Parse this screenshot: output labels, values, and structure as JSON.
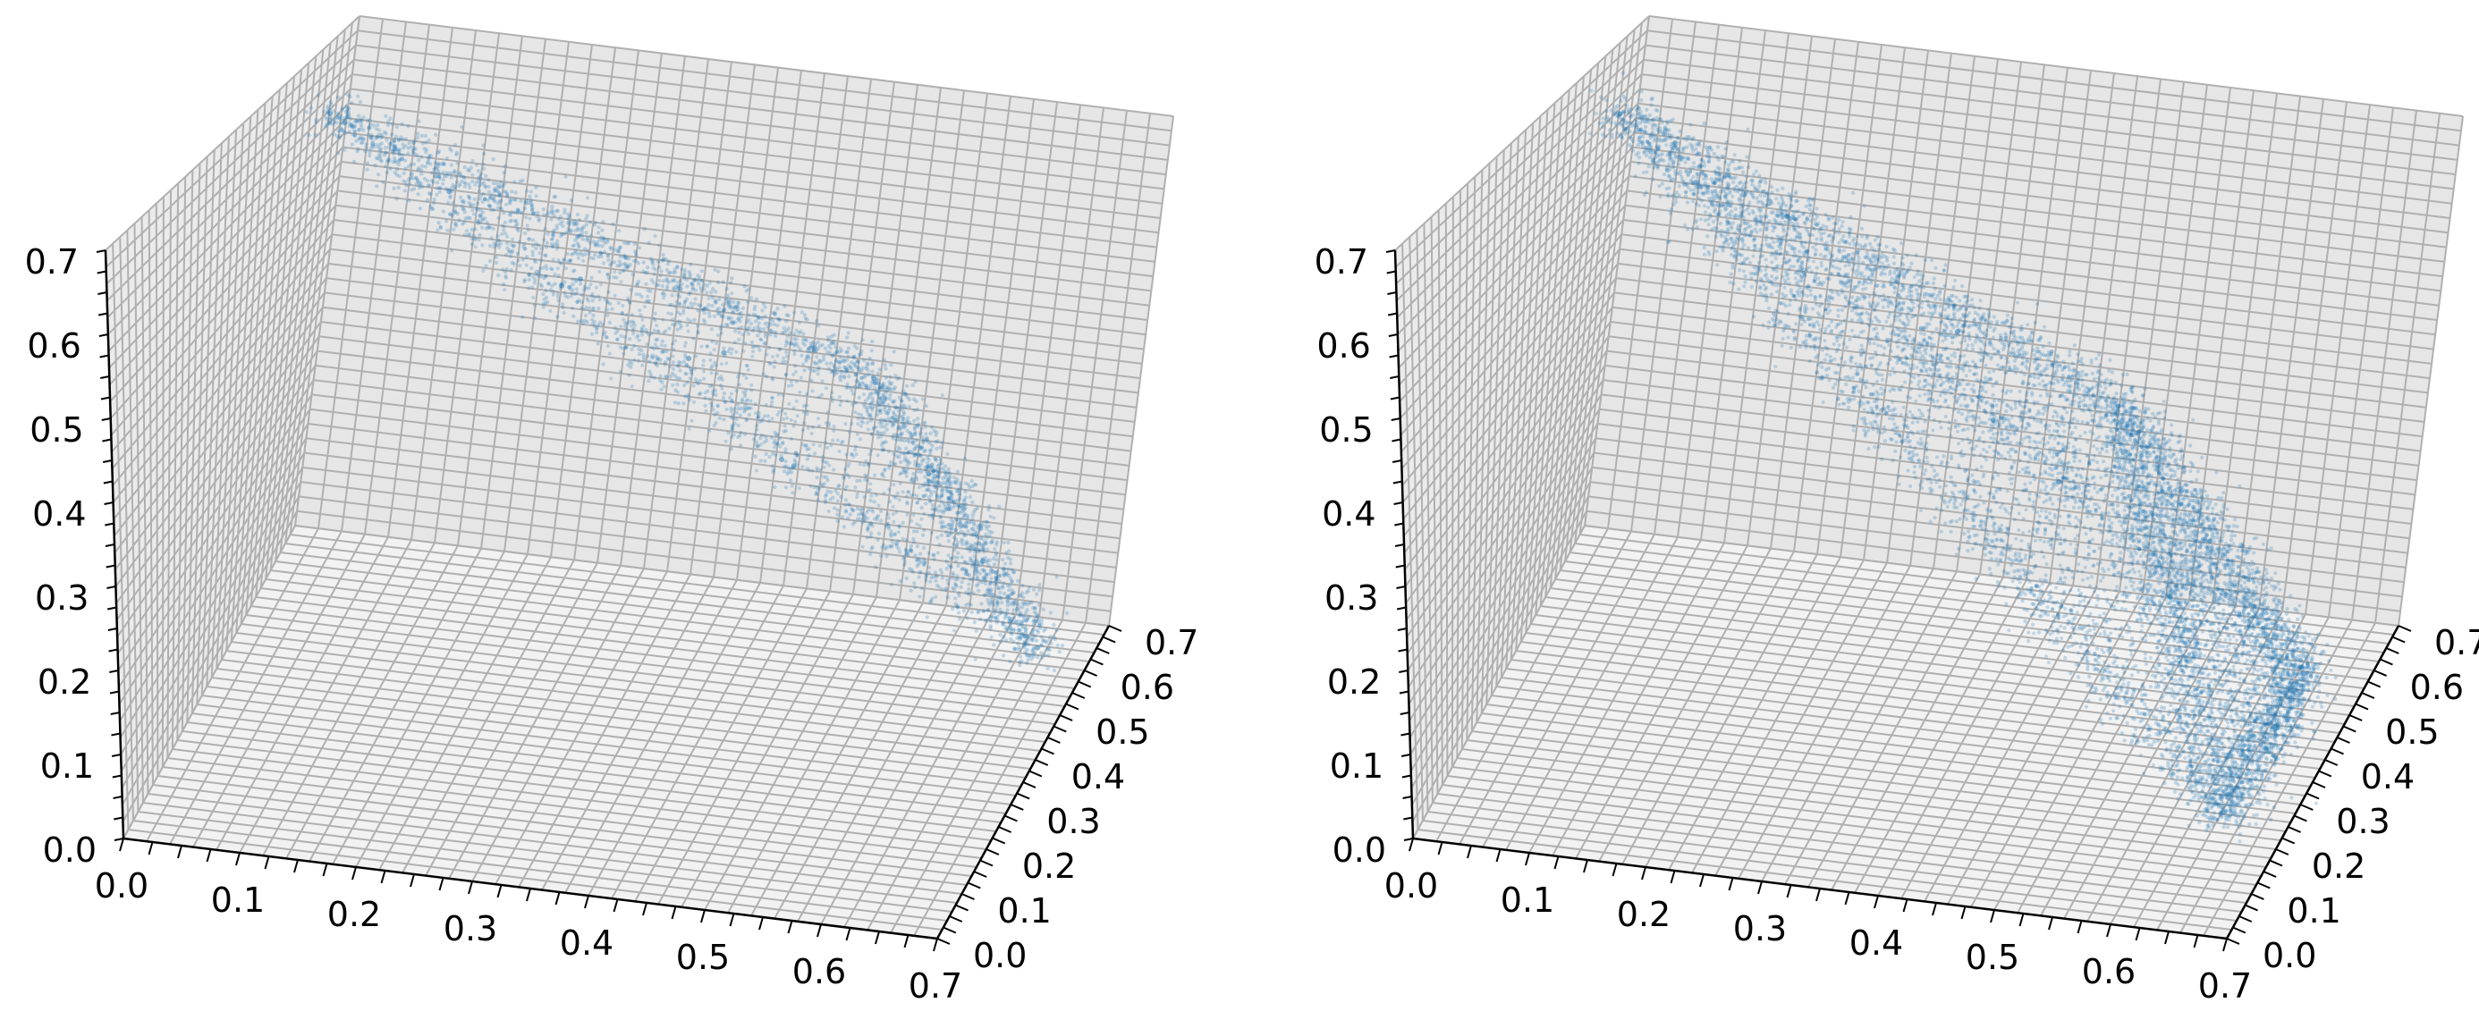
{
  "chart_data": [
    {
      "type": "scatter",
      "projection": "3d",
      "title": "",
      "xlabel": "",
      "ylabel": "",
      "zlabel": "",
      "xlim": [
        0,
        0.7
      ],
      "ylim": [
        0,
        0.7
      ],
      "zlim": [
        0,
        0.7
      ],
      "ticks": [
        "0.0",
        "0.1",
        "0.2",
        "0.3",
        "0.4",
        "0.5",
        "0.6",
        "0.7"
      ],
      "grid": true,
      "marker_color": "#1f77b4",
      "marker_alpha": 0.08,
      "vertices": [
        {
          "x": 0.05,
          "y": 0.66,
          "z": 0.52
        },
        {
          "x": 0.66,
          "y": 0.0,
          "z": 0.66
        },
        {
          "x": 0.66,
          "y": 0.6,
          "z": 0.02
        }
      ],
      "series": [
        {
          "values": [
            {
              "x": 0.05,
              "y": 0.66,
              "z": 0.52
            },
            {
              "x": 0.2,
              "y": 0.44,
              "z": 0.57
            },
            {
              "x": 0.36,
              "y": 0.22,
              "z": 0.61
            },
            {
              "x": 0.52,
              "y": 0.05,
              "z": 0.64
            },
            {
              "x": 0.66,
              "y": 0.0,
              "z": 0.66
            },
            {
              "x": 0.66,
              "y": 0.2,
              "z": 0.44
            },
            {
              "x": 0.66,
              "y": 0.4,
              "z": 0.23
            },
            {
              "x": 0.66,
              "y": 0.6,
              "z": 0.02
            },
            {
              "x": 0.45,
              "y": 0.62,
              "z": 0.19
            },
            {
              "x": 0.25,
              "y": 0.64,
              "z": 0.36
            },
            {
              "x": 0.4,
              "y": 0.45,
              "z": 0.4
            },
            {
              "x": 0.5,
              "y": 0.35,
              "z": 0.35
            }
          ]
        }
      ]
    },
    {
      "type": "scatter",
      "projection": "3d",
      "title": "",
      "xlabel": "",
      "ylabel": "",
      "zlabel": "",
      "xlim": [
        0,
        0.7
      ],
      "ylim": [
        0,
        0.7
      ],
      "zlim": [
        0,
        0.7
      ],
      "ticks": [
        "0.0",
        "0.1",
        "0.2",
        "0.3",
        "0.4",
        "0.5",
        "0.6",
        "0.7"
      ],
      "grid": true,
      "marker_color": "#1f77b4",
      "marker_alpha": 0.08,
      "vertices": [
        {
          "x": 0.05,
          "y": 0.66,
          "z": 0.52
        },
        {
          "x": 0.62,
          "y": 0.0,
          "z": 0.62
        },
        {
          "x": 0.66,
          "y": 0.5,
          "z": 0.05
        },
        {
          "x": 0.7,
          "y": 0.0,
          "z": 0.15
        }
      ],
      "series": [
        {
          "values": [
            {
              "x": 0.05,
              "y": 0.66,
              "z": 0.52
            },
            {
              "x": 0.25,
              "y": 0.4,
              "z": 0.57
            },
            {
              "x": 0.45,
              "y": 0.15,
              "z": 0.6
            },
            {
              "x": 0.62,
              "y": 0.0,
              "z": 0.62
            },
            {
              "x": 0.64,
              "y": 0.25,
              "z": 0.33
            },
            {
              "x": 0.66,
              "y": 0.5,
              "z": 0.05
            },
            {
              "x": 0.7,
              "y": 0.0,
              "z": 0.15
            },
            {
              "x": 0.66,
              "y": 0.0,
              "z": 0.4
            },
            {
              "x": 0.4,
              "y": 0.5,
              "z": 0.3
            },
            {
              "x": 0.5,
              "y": 0.3,
              "z": 0.35
            }
          ]
        }
      ]
    }
  ]
}
